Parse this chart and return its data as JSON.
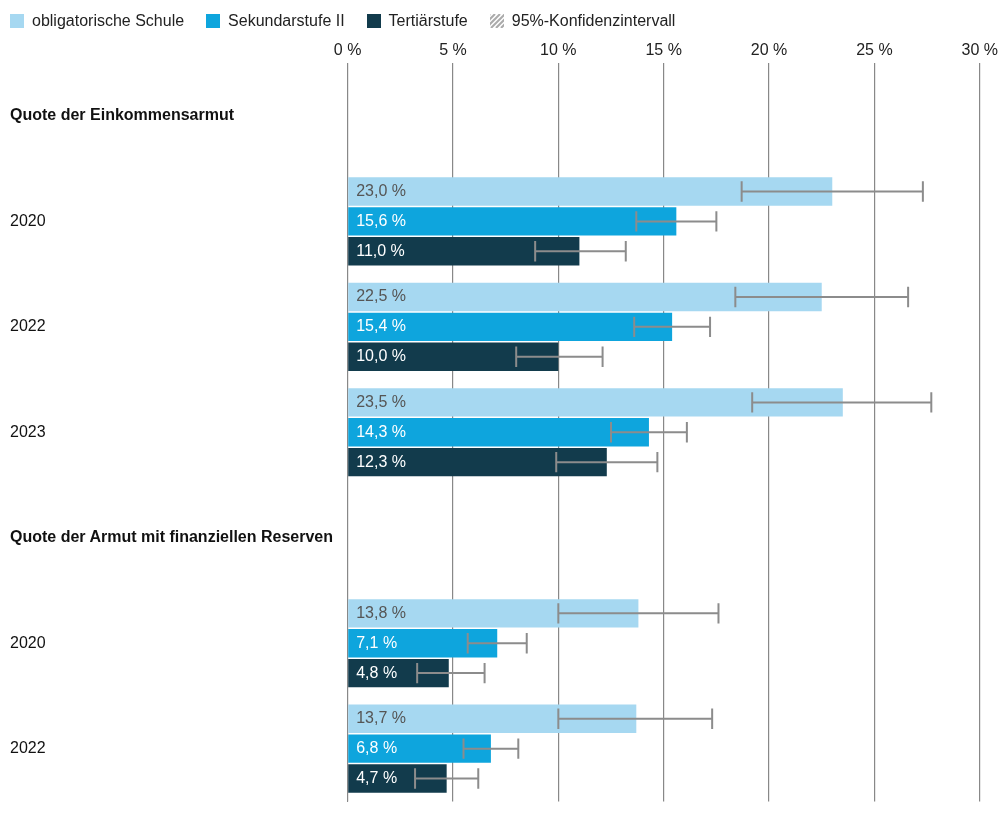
{
  "chart_data": {
    "type": "bar",
    "orientation": "horizontal",
    "categories": [
      "Quote der Einkommensarmut",
      "2020",
      "2022",
      "2023",
      "Quote der Armut mit finanziellen Reserven",
      "2020",
      "2022"
    ],
    "series": [
      {
        "name": "obligatorische Schule",
        "color": "#a6d8f1",
        "values": [
          null,
          23.0,
          22.5,
          23.5,
          null,
          13.8,
          13.7
        ],
        "value_labels": [
          null,
          "23,0 %",
          "22,5 %",
          "23,5 %",
          null,
          "13,8 %",
          "13,7 %"
        ],
        "errors": [
          null,
          [
            18.7,
            27.3
          ],
          [
            18.4,
            26.6
          ],
          [
            19.2,
            27.7
          ],
          null,
          [
            10.0,
            17.6
          ],
          [
            10.0,
            17.3
          ]
        ]
      },
      {
        "name": "Sekundarstufe II",
        "color": "#0ea5dd",
        "values": [
          null,
          15.6,
          15.4,
          14.3,
          null,
          7.1,
          6.8
        ],
        "value_labels": [
          null,
          "15,6 %",
          "15,4 %",
          "14,3 %",
          null,
          "7,1 %",
          "6,8 %"
        ],
        "errors": [
          null,
          [
            13.7,
            17.5
          ],
          [
            13.6,
            17.2
          ],
          [
            12.5,
            16.1
          ],
          null,
          [
            5.7,
            8.5
          ],
          [
            5.5,
            8.1
          ]
        ]
      },
      {
        "name": "Tertiärstufe",
        "color": "#123b4c",
        "values": [
          null,
          11.0,
          10.0,
          12.3,
          null,
          4.8,
          4.7
        ],
        "value_labels": [
          null,
          "11,0 %",
          "10,0 %",
          "12,3 %",
          null,
          "4,8 %",
          "4,7 %"
        ],
        "errors": [
          null,
          [
            8.9,
            13.2
          ],
          [
            8.0,
            12.1
          ],
          [
            9.9,
            14.7
          ],
          null,
          [
            3.3,
            6.5
          ],
          [
            3.2,
            6.2
          ]
        ]
      }
    ],
    "annotations": [
      "95%-Konfidenzintervall"
    ],
    "xlim": [
      0,
      30
    ],
    "xticks": [
      {
        "value": 0,
        "label": "0 %"
      },
      {
        "value": 5,
        "label": "5 %"
      },
      {
        "value": 10,
        "label": "10 %"
      },
      {
        "value": 15,
        "label": "15 %"
      },
      {
        "value": 20,
        "label": "20 %"
      },
      {
        "value": 25,
        "label": "25 %"
      },
      {
        "value": 30,
        "label": "30 %"
      }
    ],
    "grid": "x",
    "legend": "top left"
  }
}
